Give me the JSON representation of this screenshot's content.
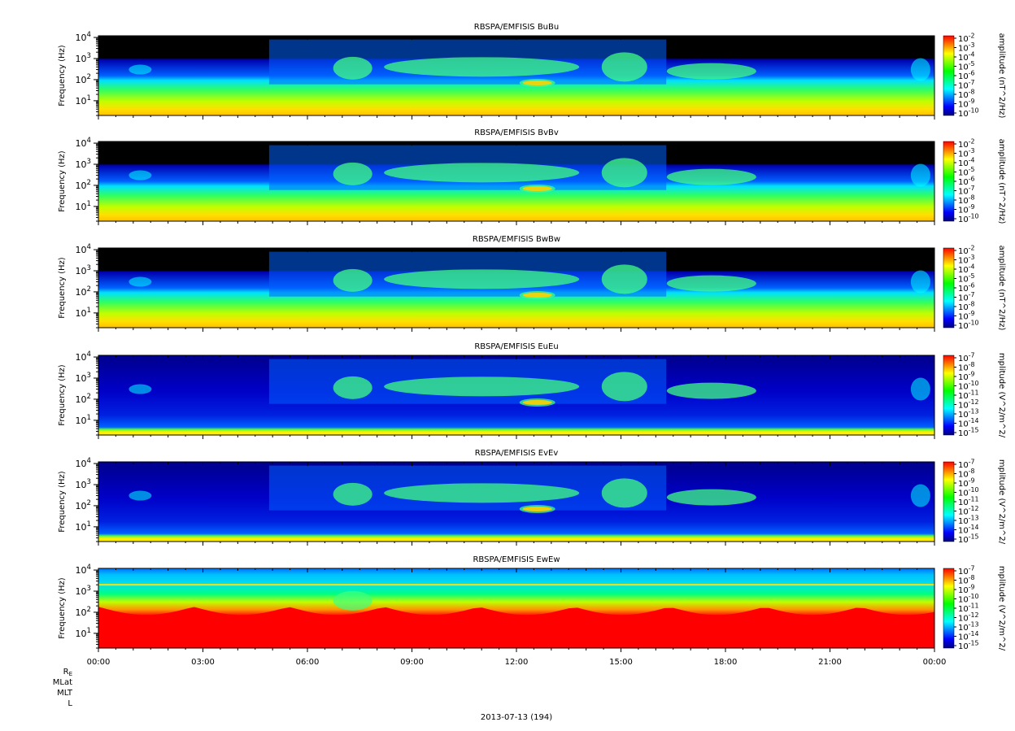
{
  "chart_data": {
    "type": "heatmap",
    "date_label": "2013-07-13 (194)",
    "x_ticks": [
      "00:00",
      "03:00",
      "06:00",
      "09:00",
      "12:00",
      "15:00",
      "18:00",
      "21:00",
      "00:00"
    ],
    "x_range_hours": [
      0,
      24
    ],
    "ephemeris_labels": [
      "R_E",
      "MLat",
      "MLT",
      "L"
    ],
    "ylabel": "Frequency (Hz)",
    "y_scale": "log",
    "y_range_hz": [
      2,
      12000
    ],
    "y_ticks": [
      {
        "base": "10",
        "exp": "1",
        "value": 10
      },
      {
        "base": "10",
        "exp": "2",
        "value": 100
      },
      {
        "base": "10",
        "exp": "3",
        "value": 1000
      },
      {
        "base": "10",
        "exp": "4",
        "value": 10000
      }
    ],
    "colormap": [
      "#000080",
      "#0000ff",
      "#0080ff",
      "#00ffff",
      "#00ff80",
      "#00ff00",
      "#80ff00",
      "#ffff00",
      "#ff8000",
      "#ff0000"
    ],
    "panels": [
      {
        "title": "RBSPA/EMFISIS  BuBu",
        "cbar_label": "amplitude (nT^2/Hz)",
        "cbar_ticks": [
          {
            "base": "10",
            "exp": "-2"
          },
          {
            "base": "10",
            "exp": "-3"
          },
          {
            "base": "10",
            "exp": "-4"
          },
          {
            "base": "10",
            "exp": "-5"
          },
          {
            "base": "10",
            "exp": "-6"
          },
          {
            "base": "10",
            "exp": "-7"
          },
          {
            "base": "10",
            "exp": "-8"
          },
          {
            "base": "10",
            "exp": "-9"
          },
          {
            "base": "10",
            "exp": "-10"
          }
        ]
      },
      {
        "title": "RBSPA/EMFISIS  BvBv",
        "cbar_label": "amplitude (nT^2/Hz)",
        "cbar_ticks": [
          {
            "base": "10",
            "exp": "-2"
          },
          {
            "base": "10",
            "exp": "-3"
          },
          {
            "base": "10",
            "exp": "-4"
          },
          {
            "base": "10",
            "exp": "-5"
          },
          {
            "base": "10",
            "exp": "-6"
          },
          {
            "base": "10",
            "exp": "-7"
          },
          {
            "base": "10",
            "exp": "-8"
          },
          {
            "base": "10",
            "exp": "-9"
          },
          {
            "base": "10",
            "exp": "-10"
          }
        ]
      },
      {
        "title": "RBSPA/EMFISIS  BwBw",
        "cbar_label": "amplitude (nT^2/Hz)",
        "cbar_ticks": [
          {
            "base": "10",
            "exp": "-2"
          },
          {
            "base": "10",
            "exp": "-3"
          },
          {
            "base": "10",
            "exp": "-4"
          },
          {
            "base": "10",
            "exp": "-5"
          },
          {
            "base": "10",
            "exp": "-6"
          },
          {
            "base": "10",
            "exp": "-7"
          },
          {
            "base": "10",
            "exp": "-8"
          },
          {
            "base": "10",
            "exp": "-9"
          },
          {
            "base": "10",
            "exp": "-10"
          }
        ]
      },
      {
        "title": "RBSPA/EMFISIS  EuEu",
        "cbar_label": "mplitude (V^2/m^2/",
        "cbar_ticks": [
          {
            "base": "10",
            "exp": "-7"
          },
          {
            "base": "10",
            "exp": "-8"
          },
          {
            "base": "10",
            "exp": "-9"
          },
          {
            "base": "10",
            "exp": "-10"
          },
          {
            "base": "10",
            "exp": "-11"
          },
          {
            "base": "10",
            "exp": "-12"
          },
          {
            "base": "10",
            "exp": "-13"
          },
          {
            "base": "10",
            "exp": "-14"
          },
          {
            "base": "10",
            "exp": "-15"
          }
        ]
      },
      {
        "title": "RBSPA/EMFISIS  EvEv",
        "cbar_label": "mplitude (V^2/m^2/",
        "cbar_ticks": [
          {
            "base": "10",
            "exp": "-7"
          },
          {
            "base": "10",
            "exp": "-8"
          },
          {
            "base": "10",
            "exp": "-9"
          },
          {
            "base": "10",
            "exp": "-10"
          },
          {
            "base": "10",
            "exp": "-11"
          },
          {
            "base": "10",
            "exp": "-12"
          },
          {
            "base": "10",
            "exp": "-13"
          },
          {
            "base": "10",
            "exp": "-14"
          },
          {
            "base": "10",
            "exp": "-15"
          }
        ]
      },
      {
        "title": "RBSPA/EMFISIS  EwEw",
        "cbar_label": "mplitude (V^2/m^2/",
        "cbar_ticks": [
          {
            "base": "10",
            "exp": "-7"
          },
          {
            "base": "10",
            "exp": "-8"
          },
          {
            "base": "10",
            "exp": "-9"
          },
          {
            "base": "10",
            "exp": "-10"
          },
          {
            "base": "10",
            "exp": "-11"
          },
          {
            "base": "10",
            "exp": "-12"
          },
          {
            "base": "10",
            "exp": "-13"
          },
          {
            "base": "10",
            "exp": "-14"
          },
          {
            "base": "10",
            "exp": "-15"
          }
        ]
      }
    ]
  }
}
